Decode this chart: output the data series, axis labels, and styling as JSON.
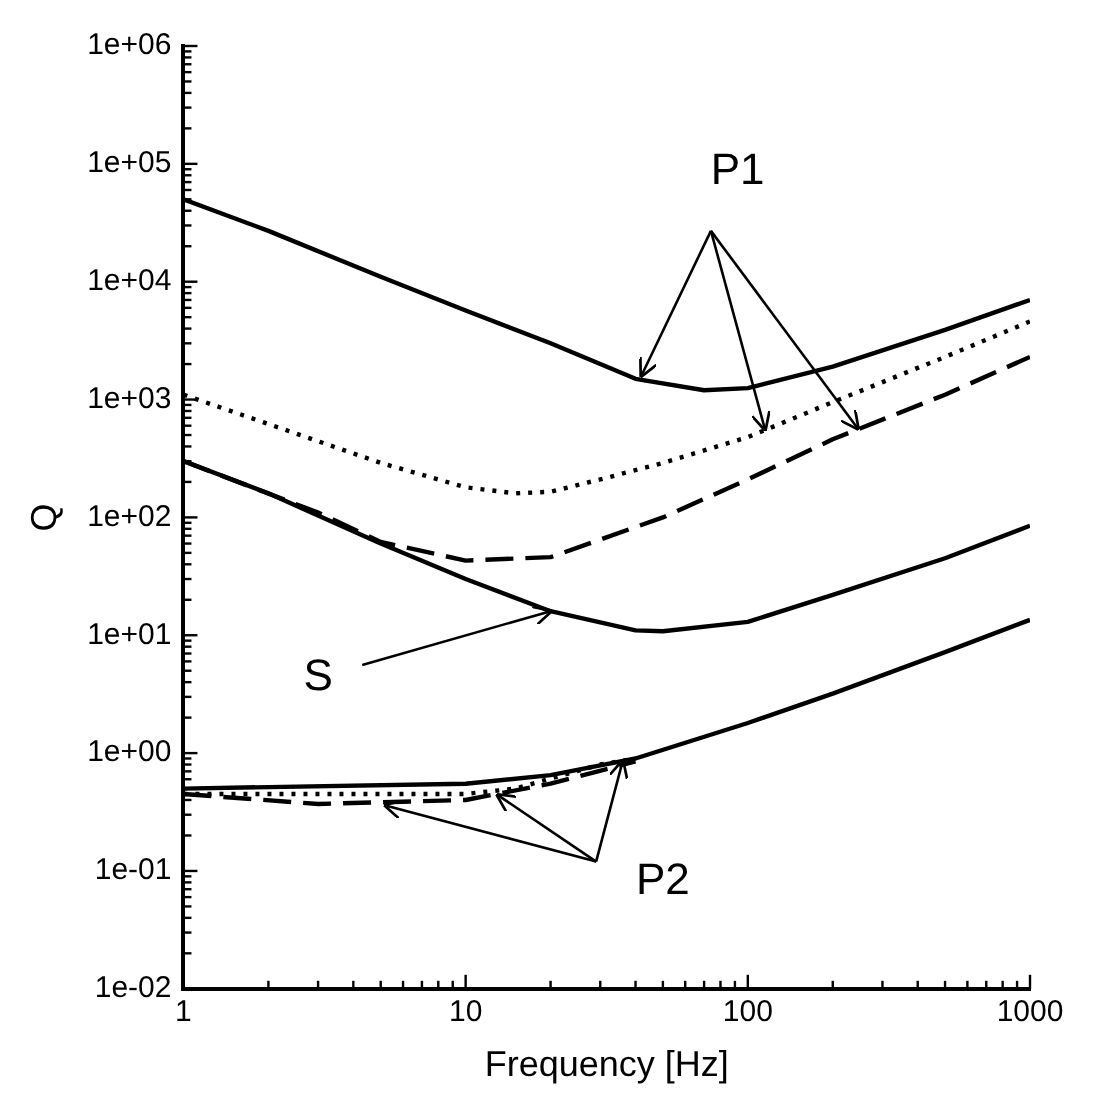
{
  "chart_data": {
    "type": "line",
    "xlabel": "Frequency [Hz]",
    "ylabel": "Q",
    "log": "xy",
    "grid": false,
    "legend": false,
    "marker": "none",
    "xlim": [
      1,
      1000
    ],
    "xticks": [
      1,
      10,
      100,
      1000
    ],
    "ylim": [
      0.01,
      1000000
    ],
    "yticks": [
      {
        "value": 0.01,
        "label": "1e-02"
      },
      {
        "value": 0.1,
        "label": "1e-01"
      },
      {
        "value": 1,
        "label": "1e+00"
      },
      {
        "value": 10,
        "label": "1e+01"
      },
      {
        "value": 100,
        "label": "1e+02"
      },
      {
        "value": 1000,
        "label": "1e+03"
      },
      {
        "value": 10000,
        "label": "1e+04"
      },
      {
        "value": 100000,
        "label": "1e+05"
      },
      {
        "value": 1000000,
        "label": "1e+06"
      }
    ],
    "annotations": [
      {
        "text": "P1",
        "x": 42,
        "y": 1600
      },
      {
        "text": "S",
        "x": 20,
        "y": 16
      },
      {
        "text": "P2",
        "x": 36,
        "y": 0.85
      }
    ],
    "series": [
      {
        "color": "#000000",
        "line_style": "solid",
        "x": [
          1,
          2,
          5,
          10,
          20,
          40,
          70,
          100,
          200,
          500,
          1000
        ],
        "values": [
          50000,
          27000,
          11000,
          5700,
          3000,
          1500,
          1200,
          1250,
          1900,
          3900,
          7000
        ]
      },
      {
        "color": "#000000",
        "line_style": "dotted",
        "x": [
          1,
          2,
          5,
          10,
          15,
          20,
          30,
          50,
          100,
          200,
          500,
          1000
        ],
        "values": [
          1100,
          620,
          290,
          180,
          160,
          165,
          210,
          290,
          480,
          950,
          2300,
          4600
        ]
      },
      {
        "color": "#000000",
        "line_style": "dashed",
        "x": [
          1,
          3,
          5,
          10,
          20,
          50,
          100,
          200,
          500,
          1000
        ],
        "values": [
          300,
          110,
          62,
          43,
          46,
          100,
          210,
          460,
          1100,
          2300
        ]
      },
      {
        "color": "#000000",
        "line_style": "solid",
        "x": [
          1,
          2,
          5,
          10,
          20,
          40,
          50,
          100,
          200,
          500,
          1000
        ],
        "values": [
          300,
          160,
          60,
          30,
          16,
          11,
          10.8,
          13,
          22,
          45,
          85
        ]
      },
      {
        "color": "#000000",
        "line_style": "solid",
        "x": [
          1,
          10,
          20,
          40,
          100,
          200,
          500,
          1000
        ],
        "values": [
          0.5,
          0.55,
          0.65,
          0.9,
          1.8,
          3.2,
          7.2,
          13.5
        ]
      },
      {
        "color": "#000000",
        "line_style": "dotted",
        "x": [
          1,
          10,
          15,
          30,
          40
        ],
        "values": [
          0.45,
          0.45,
          0.5,
          0.8,
          0.9
        ]
      },
      {
        "color": "#000000",
        "line_style": "dashed",
        "x": [
          1,
          3,
          10,
          20,
          40
        ],
        "values": [
          0.45,
          0.37,
          0.4,
          0.55,
          0.85
        ]
      }
    ]
  }
}
